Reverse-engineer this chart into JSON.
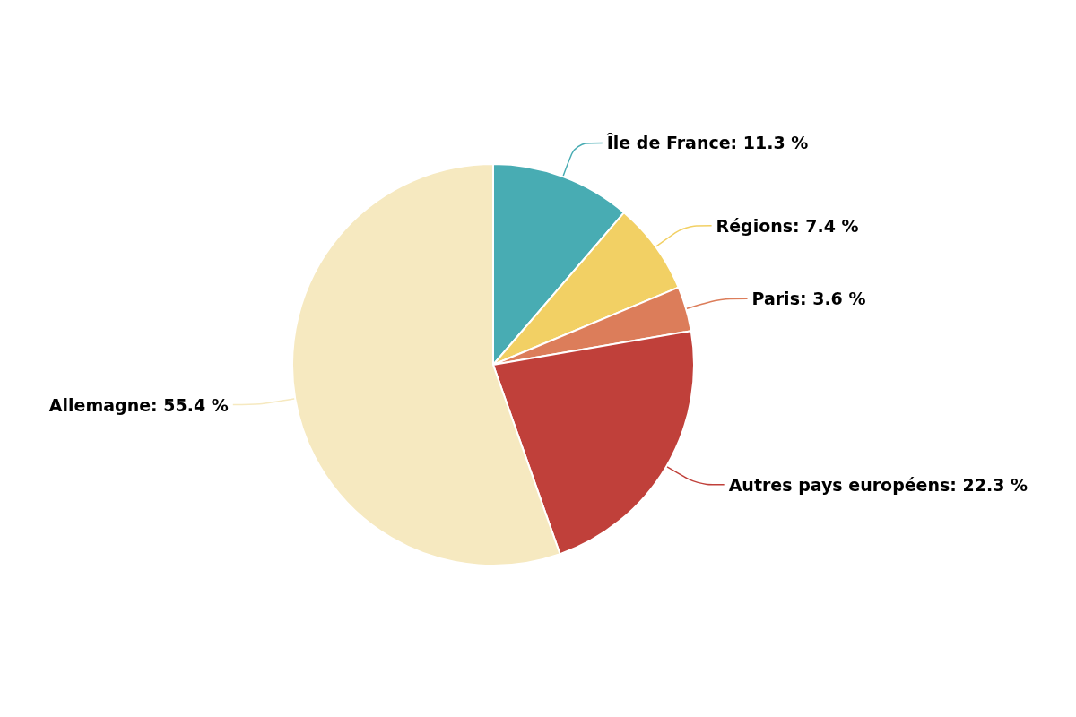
{
  "chart_data": {
    "type": "pie",
    "categories": [
      "Île de France",
      "Régions",
      "Paris",
      "Autres pays européens",
      "Allemagne"
    ],
    "values": [
      11.3,
      7.4,
      3.6,
      22.3,
      55.4
    ],
    "value_labels": [
      "11.3 %",
      "7.4 %",
      "3.6 %",
      "22.3 %",
      "55.4 %"
    ],
    "colors": [
      "#48acb3",
      "#f2d064",
      "#dc7d5a",
      "#c0403a",
      "#f6e9c0"
    ],
    "legend": false
  }
}
